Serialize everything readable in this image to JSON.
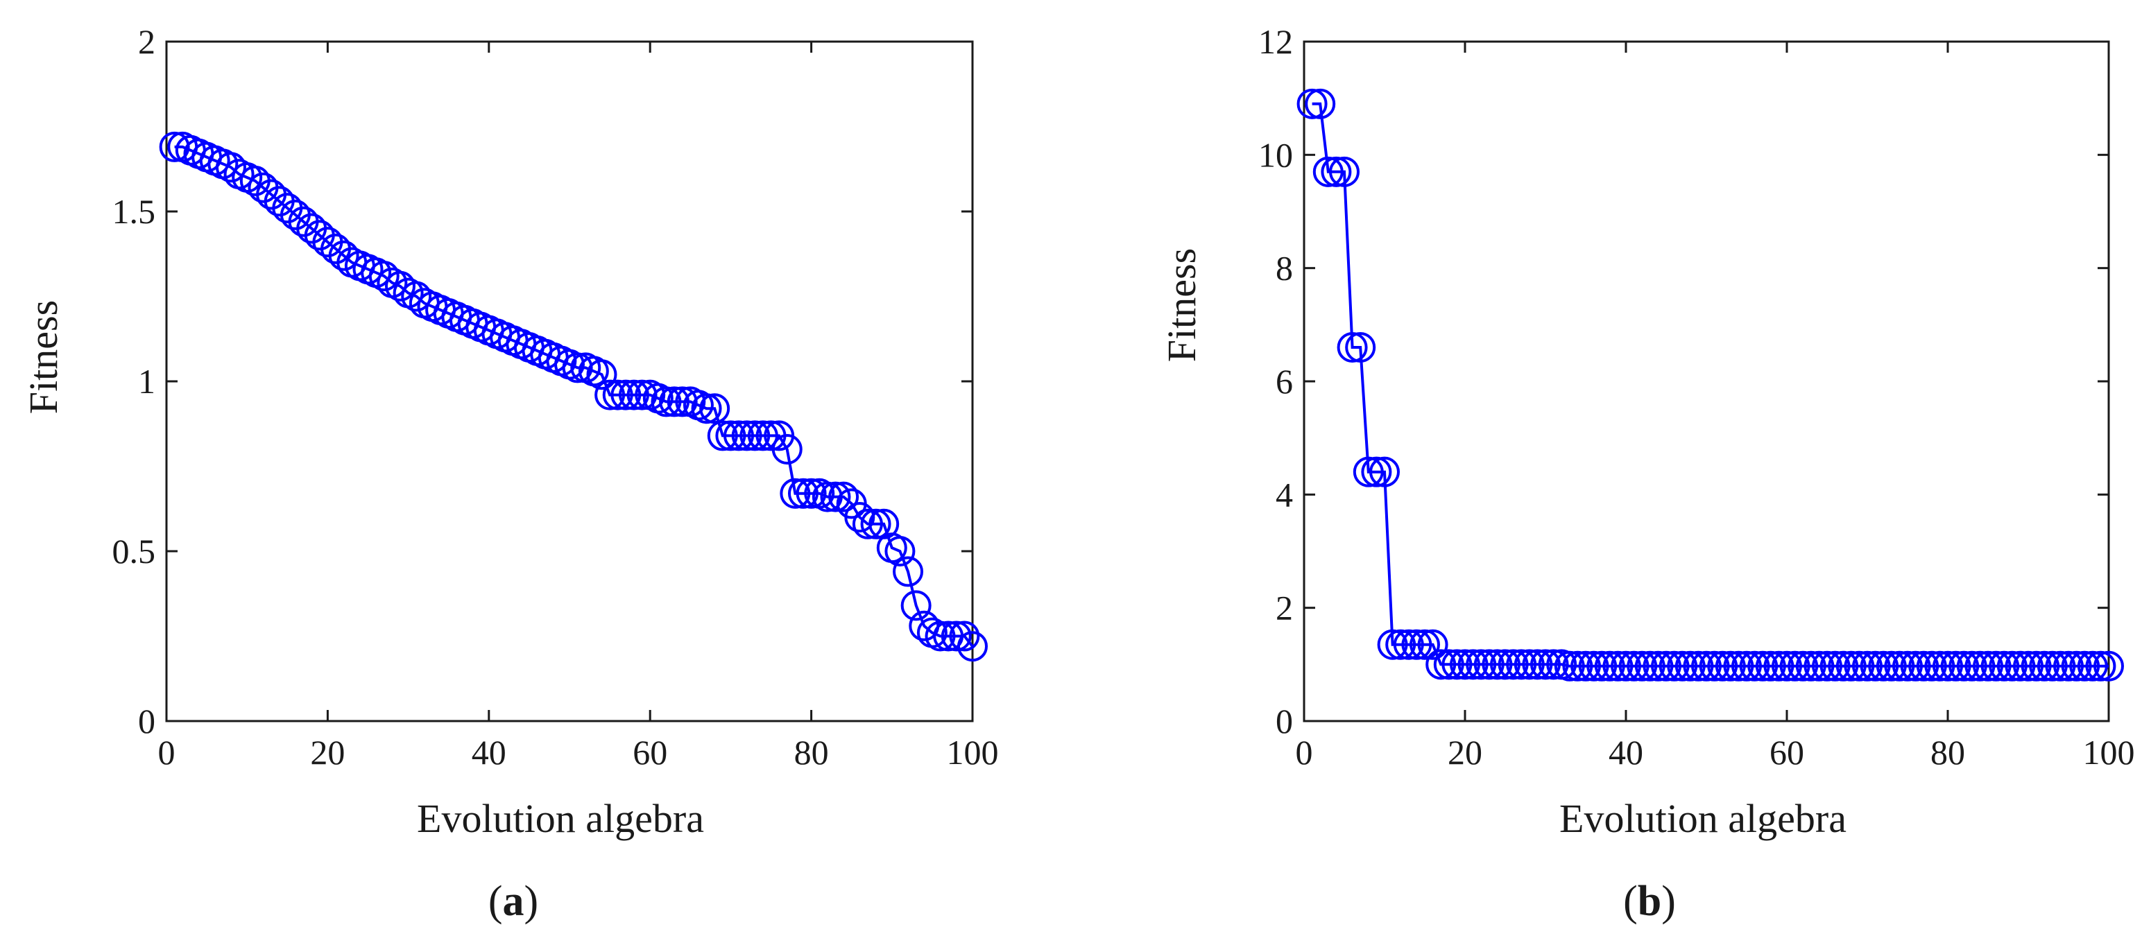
{
  "figure": {
    "colors": {
      "series": "#0000ff",
      "axes": "#1a1a1a",
      "background": "#ffffff"
    },
    "panels": [
      {
        "caption_open": "(",
        "caption_letter": "a",
        "caption_close": ")"
      },
      {
        "caption_open": "(",
        "caption_letter": "b",
        "caption_close": ")"
      }
    ]
  },
  "chart_data": [
    {
      "type": "line",
      "title": "",
      "xlabel": "Evolution algebra",
      "ylabel": "Fitness",
      "xlim": [
        0,
        100
      ],
      "ylim": [
        0,
        2
      ],
      "xticks": [
        0,
        20,
        40,
        60,
        80,
        100
      ],
      "xtick_labels": [
        "0",
        "20",
        "40",
        "60",
        "80",
        "100"
      ],
      "yticks": [
        0,
        0.5,
        1,
        1.5,
        2
      ],
      "ytick_labels": [
        "0",
        "0.5",
        "1",
        "1.5",
        "2"
      ],
      "grid": false,
      "legend": "none",
      "marker": "circle",
      "series": [
        {
          "x": [
            1,
            2,
            3,
            4,
            5,
            6,
            7,
            8,
            9,
            10,
            11,
            12,
            13,
            14,
            15,
            16,
            17,
            18,
            19,
            20,
            21,
            22,
            23,
            24,
            25,
            26,
            27,
            28,
            29,
            30,
            31,
            32,
            33,
            34,
            35,
            36,
            37,
            38,
            39,
            40,
            41,
            42,
            43,
            44,
            45,
            46,
            47,
            48,
            49,
            50,
            51,
            52,
            53,
            54,
            55,
            56,
            57,
            58,
            59,
            60,
            61,
            62,
            63,
            64,
            65,
            66,
            67,
            68,
            69,
            70,
            71,
            72,
            73,
            74,
            75,
            76,
            77,
            78,
            79,
            80,
            81,
            82,
            83,
            84,
            85,
            86,
            87,
            88,
            89,
            90,
            91,
            92,
            93,
            94,
            95,
            96,
            97,
            98,
            99,
            100
          ],
          "y": [
            1.69,
            1.69,
            1.68,
            1.67,
            1.66,
            1.65,
            1.64,
            1.63,
            1.61,
            1.6,
            1.59,
            1.57,
            1.55,
            1.53,
            1.51,
            1.49,
            1.47,
            1.45,
            1.43,
            1.41,
            1.39,
            1.37,
            1.35,
            1.34,
            1.33,
            1.32,
            1.31,
            1.29,
            1.28,
            1.26,
            1.25,
            1.23,
            1.22,
            1.21,
            1.2,
            1.19,
            1.18,
            1.17,
            1.16,
            1.15,
            1.14,
            1.13,
            1.12,
            1.11,
            1.1,
            1.09,
            1.08,
            1.07,
            1.06,
            1.05,
            1.04,
            1.04,
            1.03,
            1.02,
            0.96,
            0.96,
            0.96,
            0.96,
            0.96,
            0.96,
            0.95,
            0.94,
            0.94,
            0.94,
            0.94,
            0.93,
            0.92,
            0.92,
            0.84,
            0.84,
            0.84,
            0.84,
            0.84,
            0.84,
            0.84,
            0.84,
            0.8,
            0.67,
            0.67,
            0.67,
            0.67,
            0.66,
            0.66,
            0.66,
            0.64,
            0.6,
            0.58,
            0.58,
            0.58,
            0.51,
            0.5,
            0.44,
            0.34,
            0.28,
            0.26,
            0.25,
            0.25,
            0.25,
            0.25,
            0.22
          ]
        }
      ]
    },
    {
      "type": "line",
      "title": "",
      "xlabel": "Evolution algebra",
      "ylabel": "Fitness",
      "xlim": [
        0,
        100
      ],
      "ylim": [
        0,
        12
      ],
      "xticks": [
        0,
        20,
        40,
        60,
        80,
        100
      ],
      "xtick_labels": [
        "0",
        "20",
        "40",
        "60",
        "80",
        "100"
      ],
      "yticks": [
        0,
        2,
        4,
        6,
        8,
        10,
        12
      ],
      "ytick_labels": [
        "0",
        "2",
        "4",
        "6",
        "8",
        "10",
        "12"
      ],
      "grid": false,
      "legend": "none",
      "marker": "circle",
      "series": [
        {
          "x": [
            1,
            2,
            3,
            4,
            5,
            6,
            7,
            8,
            9,
            10,
            11,
            12,
            13,
            14,
            15,
            16,
            17,
            18,
            19,
            20,
            21,
            22,
            23,
            24,
            25,
            26,
            27,
            28,
            29,
            30,
            31,
            32,
            33,
            34,
            35,
            36,
            37,
            38,
            39,
            40,
            41,
            42,
            43,
            44,
            45,
            46,
            47,
            48,
            49,
            50,
            51,
            52,
            53,
            54,
            55,
            56,
            57,
            58,
            59,
            60,
            61,
            62,
            63,
            64,
            65,
            66,
            67,
            68,
            69,
            70,
            71,
            72,
            73,
            74,
            75,
            76,
            77,
            78,
            79,
            80,
            81,
            82,
            83,
            84,
            85,
            86,
            87,
            88,
            89,
            90,
            91,
            92,
            93,
            94,
            95,
            96,
            97,
            98,
            99,
            100
          ],
          "y": [
            10.9,
            10.9,
            9.7,
            9.7,
            9.7,
            6.6,
            6.6,
            4.4,
            4.4,
            4.4,
            1.35,
            1.35,
            1.35,
            1.35,
            1.35,
            1.35,
            1.0,
            1.0,
            1.0,
            1.0,
            1.0,
            1.0,
            1.0,
            1.0,
            1.0,
            1.0,
            1.0,
            1.0,
            1.0,
            1.0,
            1.0,
            1.0,
            0.97,
            0.97,
            0.97,
            0.97,
            0.97,
            0.97,
            0.97,
            0.97,
            0.97,
            0.97,
            0.97,
            0.97,
            0.97,
            0.97,
            0.97,
            0.97,
            0.97,
            0.97,
            0.97,
            0.97,
            0.97,
            0.97,
            0.97,
            0.97,
            0.97,
            0.97,
            0.97,
            0.97,
            0.97,
            0.97,
            0.97,
            0.97,
            0.97,
            0.97,
            0.97,
            0.97,
            0.97,
            0.97,
            0.97,
            0.97,
            0.97,
            0.97,
            0.97,
            0.97,
            0.97,
            0.97,
            0.97,
            0.97,
            0.97,
            0.97,
            0.97,
            0.97,
            0.97,
            0.97,
            0.97,
            0.97,
            0.97,
            0.97,
            0.97,
            0.97,
            0.97,
            0.97,
            0.97,
            0.97,
            0.97,
            0.97,
            0.97,
            0.97
          ]
        }
      ]
    }
  ]
}
